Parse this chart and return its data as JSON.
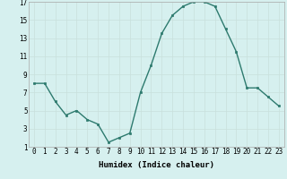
{
  "x": [
    0,
    1,
    2,
    3,
    4,
    5,
    6,
    7,
    8,
    9,
    10,
    11,
    12,
    13,
    14,
    15,
    16,
    17,
    18,
    19,
    20,
    21,
    22,
    23
  ],
  "y": [
    8,
    8,
    6,
    4.5,
    5,
    4,
    3.5,
    1.5,
    2,
    2.5,
    7,
    10,
    13.5,
    15.5,
    16.5,
    17,
    17,
    16.5,
    14,
    11.5,
    7.5,
    7.5,
    6.5,
    5.5
  ],
  "line_color": "#2d7a6e",
  "marker_color": "#2d7a6e",
  "bg_color": "#d6f0ef",
  "grid_color": "#c8e0dc",
  "xlabel": "Humidex (Indice chaleur)",
  "ylim": [
    1,
    17
  ],
  "xlim": [
    -0.5,
    23.5
  ],
  "yticks": [
    1,
    3,
    5,
    7,
    9,
    11,
    13,
    15,
    17
  ],
  "xticks": [
    0,
    1,
    2,
    3,
    4,
    5,
    6,
    7,
    8,
    9,
    10,
    11,
    12,
    13,
    14,
    15,
    16,
    17,
    18,
    19,
    20,
    21,
    22,
    23
  ],
  "axis_fontsize": 5.5,
  "label_fontsize": 6.5,
  "linewidth": 1.0,
  "markersize": 2.0
}
